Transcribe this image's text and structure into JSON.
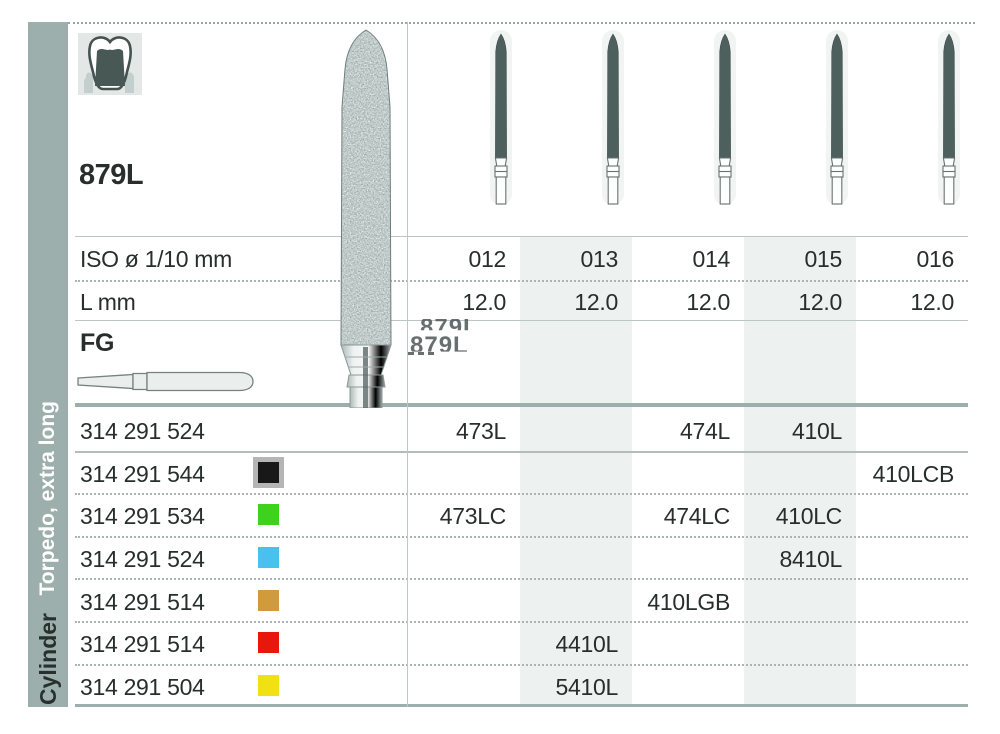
{
  "sidebar": {
    "section_label": "Torpedo, extra long",
    "group_label": "Cylinder"
  },
  "header": {
    "figure_code": "879L",
    "ghost_code": "879L"
  },
  "table": {
    "iso_row_label": "ISO ø 1/10 mm",
    "l_row_label": "L mm",
    "shank_type_label": "FG",
    "columns": [
      "012",
      "013",
      "014",
      "015",
      "016"
    ],
    "l_values": [
      "12.0",
      "12.0",
      "12.0",
      "12.0",
      "12.0"
    ],
    "order_rows": [
      {
        "order_no": "314 291 524",
        "chip": null,
        "chip_name": "",
        "cells": [
          "473L",
          "",
          "474L",
          "410L",
          ""
        ]
      },
      {
        "order_no": "314 291 544",
        "chip": "#181818",
        "chip_name": "black",
        "cells": [
          "",
          "",
          "",
          "",
          "410LCB"
        ]
      },
      {
        "order_no": "314 291 534",
        "chip": "#3fd21c",
        "chip_name": "green",
        "cells": [
          "473LC",
          "",
          "474LC",
          "410LC",
          ""
        ]
      },
      {
        "order_no": "314 291 524",
        "chip": "#49c0ed",
        "chip_name": "blue",
        "cells": [
          "",
          "",
          "",
          "8410L",
          ""
        ]
      },
      {
        "order_no": "314 291 514",
        "chip": "#d09b3c",
        "chip_name": "gold",
        "cells": [
          "",
          "",
          "410LGB",
          "",
          ""
        ]
      },
      {
        "order_no": "314 291 514",
        "chip": "#e8170b",
        "chip_name": "red",
        "cells": [
          "",
          "4410L",
          "",
          "",
          ""
        ]
      },
      {
        "order_no": "314 291 504",
        "chip": "#f1e114",
        "chip_name": "yellow",
        "cells": [
          "",
          "5410L",
          "",
          "",
          ""
        ]
      }
    ]
  },
  "colors": {
    "sidebar_bg": "#9dafac",
    "stripe": "#edf1f0",
    "bur_dark": "#4d605d",
    "accent_line": "#9dafac"
  }
}
